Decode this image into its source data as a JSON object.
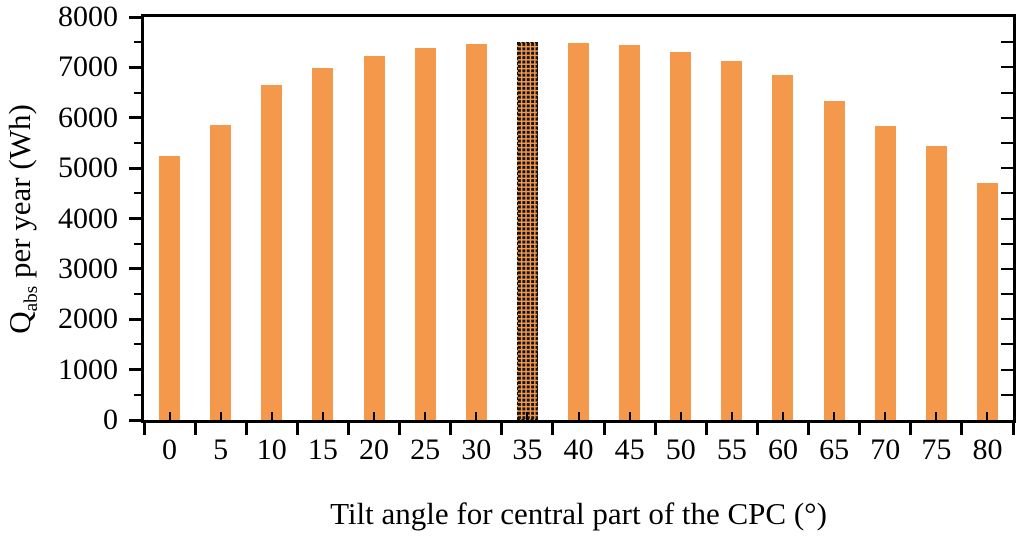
{
  "chart_data": {
    "type": "bar",
    "title": "",
    "xlabel": "Tilt angle for central part of the CPC (°)",
    "ylabel": "Qabs per year (Wh)",
    "ylabel_parts": {
      "main": "Q",
      "sub": "abs",
      "rest": " per year (Wh)"
    },
    "categories": [
      "0",
      "5",
      "10",
      "15",
      "20",
      "25",
      "30",
      "35",
      "40",
      "45",
      "50",
      "55",
      "60",
      "65",
      "70",
      "75",
      "80"
    ],
    "values": [
      5240,
      5850,
      6660,
      6990,
      7220,
      7390,
      7460,
      7500,
      7490,
      7440,
      7310,
      7130,
      6840,
      6330,
      5830,
      5430,
      4710
    ],
    "highlight_category": "35",
    "highlight_style": "black dotted pattern over orange with dashed outline",
    "ylim": [
      0,
      8000
    ],
    "yticks": [
      0,
      1000,
      2000,
      3000,
      4000,
      5000,
      6000,
      7000,
      8000
    ],
    "ytick_minor_step": 500,
    "xtick_style": "boundary ticks outside, category-center ticks inside",
    "bar_color": "#F4994C",
    "pattern_dot_color": "#141414",
    "axis_color": "#000000",
    "grid": false,
    "legend": false,
    "plot_border": "full box with inside ticks on right axis every 500"
  }
}
